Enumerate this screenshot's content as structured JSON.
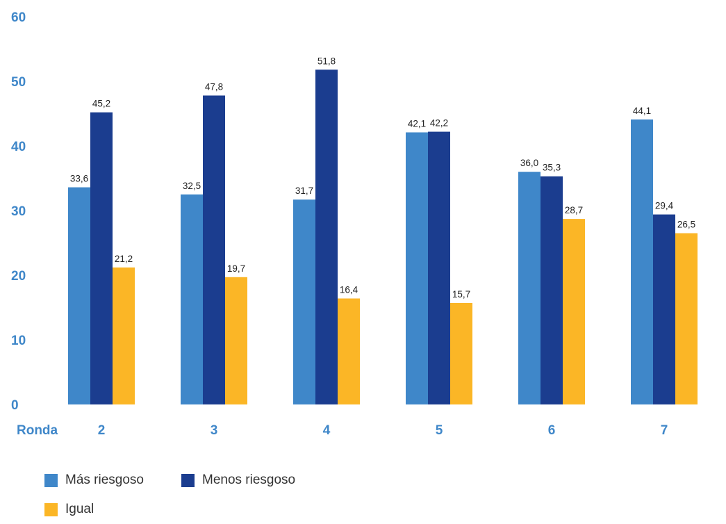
{
  "chart_data": {
    "type": "bar",
    "title": "",
    "xlabel": "Ronda",
    "ylabel": "",
    "categories": [
      "2",
      "3",
      "4",
      "5",
      "6",
      "7"
    ],
    "series": [
      {
        "name": "Más riesgoso",
        "color": "#3f87c9",
        "values": [
          33.6,
          32.5,
          31.7,
          42.1,
          36.0,
          44.1
        ],
        "labels": [
          "33,6",
          "32,5",
          "31,7",
          "42,1",
          "36,0",
          "44,1"
        ]
      },
      {
        "name": "Menos riesgoso",
        "color": "#1b3d8f",
        "values": [
          45.2,
          47.8,
          51.8,
          42.2,
          35.3,
          29.4
        ],
        "labels": [
          "45,2",
          "47,8",
          "51,8",
          "42,2",
          "35,3",
          "29,4"
        ]
      },
      {
        "name": "Igual",
        "color": "#fbb626",
        "values": [
          21.2,
          19.7,
          16.4,
          15.7,
          28.7,
          26.5
        ],
        "labels": [
          "21,2",
          "19,7",
          "16,4",
          "15,7",
          "28,7",
          "26,5"
        ]
      }
    ],
    "ylim": [
      0,
      60
    ],
    "yticks": [
      0,
      10,
      20,
      30,
      40,
      50,
      60
    ],
    "grid": false,
    "legend_position": "bottom-left",
    "axis_label_color": "#3f87c9"
  }
}
